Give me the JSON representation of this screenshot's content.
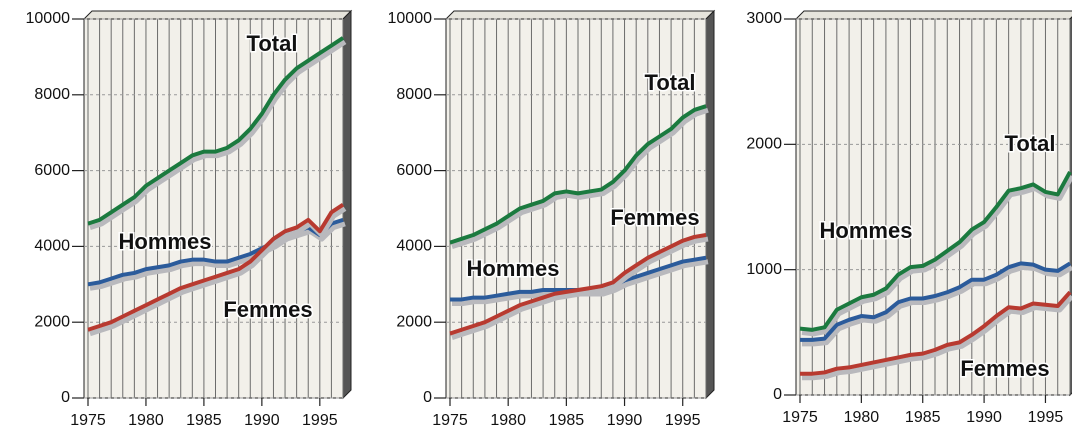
{
  "chart_data": [
    {
      "type": "line",
      "x": [
        1975,
        1976,
        1977,
        1978,
        1979,
        1980,
        1981,
        1982,
        1983,
        1984,
        1985,
        1986,
        1987,
        1988,
        1989,
        1990,
        1991,
        1992,
        1993,
        1994,
        1995,
        1996,
        1997
      ],
      "series": [
        {
          "name": "Total",
          "color": "#1b7a3f",
          "values": [
            4600,
            4700,
            4900,
            5100,
            5300,
            5600,
            5800,
            6000,
            6200,
            6400,
            6500,
            6500,
            6600,
            6800,
            7100,
            7500,
            8000,
            8400,
            8700,
            8900,
            9100,
            9300,
            9500
          ]
        },
        {
          "name": "Hommes",
          "color": "#2b5b9b",
          "values": [
            3000,
            3050,
            3150,
            3250,
            3300,
            3400,
            3450,
            3500,
            3600,
            3650,
            3650,
            3600,
            3600,
            3700,
            3800,
            3950,
            4100,
            4300,
            4400,
            4500,
            4300,
            4600,
            4700
          ]
        },
        {
          "name": "Femmes",
          "color": "#b83a30",
          "values": [
            1800,
            1900,
            2000,
            2150,
            2300,
            2450,
            2600,
            2750,
            2900,
            3000,
            3100,
            3200,
            3300,
            3400,
            3600,
            3900,
            4200,
            4400,
            4500,
            4700,
            4400,
            4900,
            5100
          ]
        }
      ],
      "xlim": [
        1975,
        1997
      ],
      "xticks": [
        1975,
        1980,
        1985,
        1990,
        1995
      ],
      "ylim": [
        0,
        10000
      ],
      "yticks": [
        0,
        2000,
        4000,
        6000,
        8000,
        10000
      ],
      "grid": true
    },
    {
      "type": "line",
      "x": [
        1975,
        1976,
        1977,
        1978,
        1979,
        1980,
        1981,
        1982,
        1983,
        1984,
        1985,
        1986,
        1987,
        1988,
        1989,
        1990,
        1991,
        1992,
        1993,
        1994,
        1995,
        1996,
        1997
      ],
      "series": [
        {
          "name": "Total",
          "color": "#1b7a3f",
          "values": [
            4100,
            4200,
            4300,
            4450,
            4600,
            4800,
            5000,
            5100,
            5200,
            5400,
            5450,
            5400,
            5450,
            5500,
            5700,
            6000,
            6400,
            6700,
            6900,
            7100,
            7400,
            7600,
            7700
          ]
        },
        {
          "name": "Hommes",
          "color": "#2b5b9b",
          "values": [
            2600,
            2600,
            2650,
            2650,
            2700,
            2750,
            2800,
            2800,
            2850,
            2850,
            2850,
            2850,
            2850,
            2850,
            2950,
            3100,
            3200,
            3300,
            3400,
            3500,
            3600,
            3650,
            3700
          ]
        },
        {
          "name": "Femmes",
          "color": "#b83a30",
          "values": [
            1700,
            1800,
            1900,
            2000,
            2150,
            2300,
            2450,
            2550,
            2650,
            2750,
            2800,
            2850,
            2900,
            2950,
            3050,
            3300,
            3500,
            3700,
            3850,
            4000,
            4150,
            4250,
            4300
          ]
        }
      ],
      "xlim": [
        1975,
        1997
      ],
      "xticks": [
        1975,
        1980,
        1985,
        1990,
        1995
      ],
      "ylim": [
        0,
        10000
      ],
      "yticks": [
        0,
        2000,
        4000,
        6000,
        8000,
        10000
      ],
      "grid": true
    },
    {
      "type": "line",
      "x": [
        1975,
        1976,
        1977,
        1978,
        1979,
        1980,
        1981,
        1982,
        1983,
        1984,
        1985,
        1986,
        1987,
        1988,
        1989,
        1990,
        1991,
        1992,
        1993,
        1994,
        1995,
        1996,
        1997
      ],
      "series": [
        {
          "name": "Total",
          "color": "#1b7a3f",
          "values": [
            530,
            520,
            540,
            680,
            730,
            780,
            800,
            850,
            960,
            1020,
            1030,
            1080,
            1150,
            1220,
            1320,
            1380,
            1500,
            1630,
            1650,
            1680,
            1620,
            1600,
            1780
          ]
        },
        {
          "name": "Hommes",
          "color": "#2b5b9b",
          "values": [
            440,
            440,
            450,
            560,
            600,
            630,
            620,
            660,
            740,
            770,
            770,
            790,
            820,
            860,
            920,
            920,
            960,
            1020,
            1050,
            1040,
            1000,
            990,
            1050
          ]
        },
        {
          "name": "Femmes",
          "color": "#b83a30",
          "values": [
            170,
            170,
            180,
            210,
            220,
            240,
            260,
            280,
            300,
            320,
            330,
            360,
            400,
            420,
            480,
            550,
            630,
            700,
            690,
            730,
            720,
            710,
            820
          ]
        }
      ],
      "xlim": [
        1975,
        1997
      ],
      "xticks": [
        1975,
        1980,
        1985,
        1990,
        1995
      ],
      "ylim": [
        0,
        3000
      ],
      "yticks": [
        0,
        1000,
        2000,
        3000
      ],
      "grid": true
    }
  ]
}
